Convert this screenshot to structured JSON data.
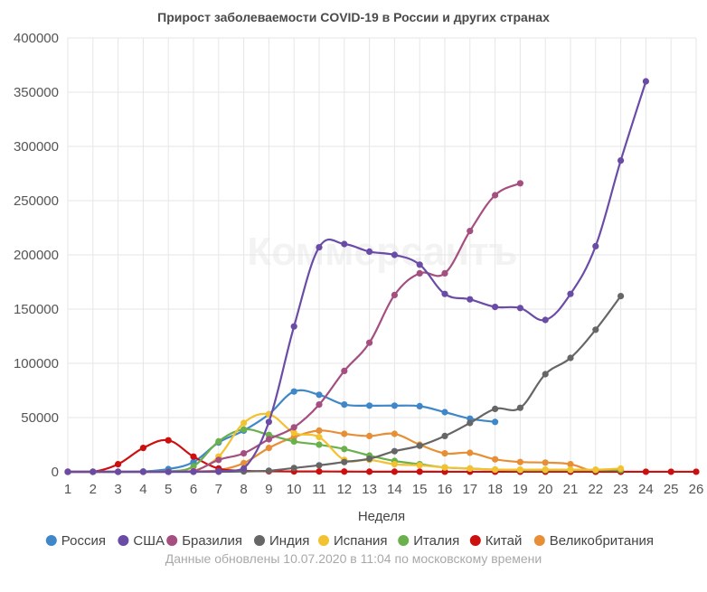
{
  "chart_data": {
    "type": "line",
    "title": "Прирост заболеваемости COVID-19 в России и других странах",
    "xlabel": "Неделя",
    "ylabel": "",
    "x": [
      1,
      2,
      3,
      4,
      5,
      6,
      7,
      8,
      9,
      10,
      11,
      12,
      13,
      14,
      15,
      16,
      17,
      18,
      19,
      20,
      21,
      22,
      23,
      24,
      25,
      26
    ],
    "xlim": [
      1,
      26
    ],
    "ylim": [
      0,
      400000
    ],
    "yticks": [
      0,
      50000,
      100000,
      150000,
      200000,
      250000,
      300000,
      350000,
      400000
    ],
    "grid": true,
    "legend_position": "bottom",
    "watermark": "Коммерсантъ",
    "footnote": "Данные обновлены 10.07.2020 в 11:04 по московскому времени",
    "series": [
      {
        "name": "Россия",
        "color": "#3f87c8",
        "x": [
          1,
          2,
          3,
          4,
          5,
          6,
          7,
          8,
          9,
          10,
          11,
          12,
          13,
          14,
          15,
          16,
          17,
          18
        ],
        "values": [
          0,
          0,
          0,
          300,
          2500,
          9000,
          27000,
          38000,
          53000,
          74000,
          71000,
          62000,
          61000,
          61000,
          60500,
          55000,
          49000,
          46000
        ]
      },
      {
        "name": "США",
        "color": "#6a4ca6",
        "x": [
          1,
          2,
          3,
          4,
          5,
          6,
          7,
          8,
          9,
          10,
          11,
          12,
          13,
          14,
          15,
          16,
          17,
          18,
          19,
          20,
          21,
          22,
          23,
          24
        ],
        "values": [
          0,
          0,
          0,
          0,
          0,
          0,
          500,
          3000,
          46000,
          134000,
          207000,
          210000,
          203000,
          200000,
          191000,
          164000,
          159000,
          152000,
          151000,
          140000,
          164000,
          208000,
          287000,
          360000
        ]
      },
      {
        "name": "Бразилия",
        "color": "#a54f80",
        "x": [
          1,
          2,
          3,
          4,
          5,
          6,
          7,
          8,
          9,
          10,
          11,
          12,
          13,
          14,
          15,
          16,
          17,
          18,
          19
        ],
        "values": [
          0,
          0,
          0,
          0,
          0,
          500,
          11000,
          17000,
          30000,
          41000,
          62000,
          93000,
          119000,
          163000,
          183000,
          183000,
          222000,
          255000,
          266000
        ]
      },
      {
        "name": "Индия",
        "color": "#666666",
        "x": [
          1,
          2,
          3,
          4,
          5,
          6,
          7,
          8,
          9,
          10,
          11,
          12,
          13,
          14,
          15,
          16,
          17,
          18,
          19,
          20,
          21,
          22,
          23
        ],
        "values": [
          0,
          0,
          0,
          0,
          0,
          0,
          0,
          300,
          1000,
          3500,
          6000,
          9000,
          12000,
          19000,
          24000,
          33000,
          45000,
          58000,
          59000,
          90000,
          105000,
          131000,
          162000
        ]
      },
      {
        "name": "Испания",
        "color": "#f2c230",
        "x": [
          1,
          2,
          3,
          4,
          5,
          6,
          7,
          8,
          9,
          10,
          11,
          12,
          13,
          14,
          15,
          16,
          17,
          18,
          19,
          20,
          21,
          22,
          23
        ],
        "values": [
          0,
          0,
          0,
          0,
          0,
          800,
          14000,
          45000,
          53000,
          36000,
          32000,
          11000,
          11000,
          7000,
          6000,
          4000,
          3000,
          2000,
          2000,
          2000,
          2000,
          2000,
          3000
        ]
      },
      {
        "name": "Италия",
        "color": "#6ab04c",
        "x": [
          1,
          2,
          3,
          4,
          5,
          6,
          7,
          8,
          9,
          10,
          11,
          12,
          13,
          14,
          15,
          16,
          17,
          18,
          19,
          20,
          21,
          22,
          23
        ],
        "values": [
          0,
          0,
          0,
          0,
          300,
          5000,
          28000,
          39000,
          34000,
          28000,
          25000,
          21000,
          15000,
          10000,
          7000,
          4000,
          3000,
          2000,
          1500,
          1500,
          1500,
          1500,
          1500
        ]
      },
      {
        "name": "Китай",
        "color": "#cc1010",
        "x": [
          1,
          2,
          3,
          4,
          5,
          6,
          7,
          8,
          9,
          10,
          11,
          12,
          13,
          14,
          15,
          16,
          17,
          18,
          19,
          20,
          21,
          22,
          23,
          24,
          25,
          26
        ],
        "values": [
          0,
          0,
          7000,
          22000,
          29000,
          14000,
          3000,
          1000,
          500,
          300,
          300,
          200,
          100,
          100,
          100,
          50,
          50,
          50,
          50,
          50,
          50,
          50,
          50,
          50,
          50,
          50
        ]
      },
      {
        "name": "Великобритания",
        "color": "#e78f37",
        "x": [
          1,
          2,
          3,
          4,
          5,
          6,
          7,
          8,
          9,
          10,
          11,
          12,
          13,
          14,
          15,
          16,
          17,
          18,
          19,
          20,
          21,
          22,
          23
        ],
        "values": [
          0,
          0,
          0,
          0,
          0,
          500,
          1500,
          8000,
          22000,
          32000,
          38000,
          35000,
          33000,
          35000,
          25000,
          17000,
          17500,
          11500,
          9000,
          8500,
          7000,
          0,
          0
        ]
      }
    ]
  }
}
